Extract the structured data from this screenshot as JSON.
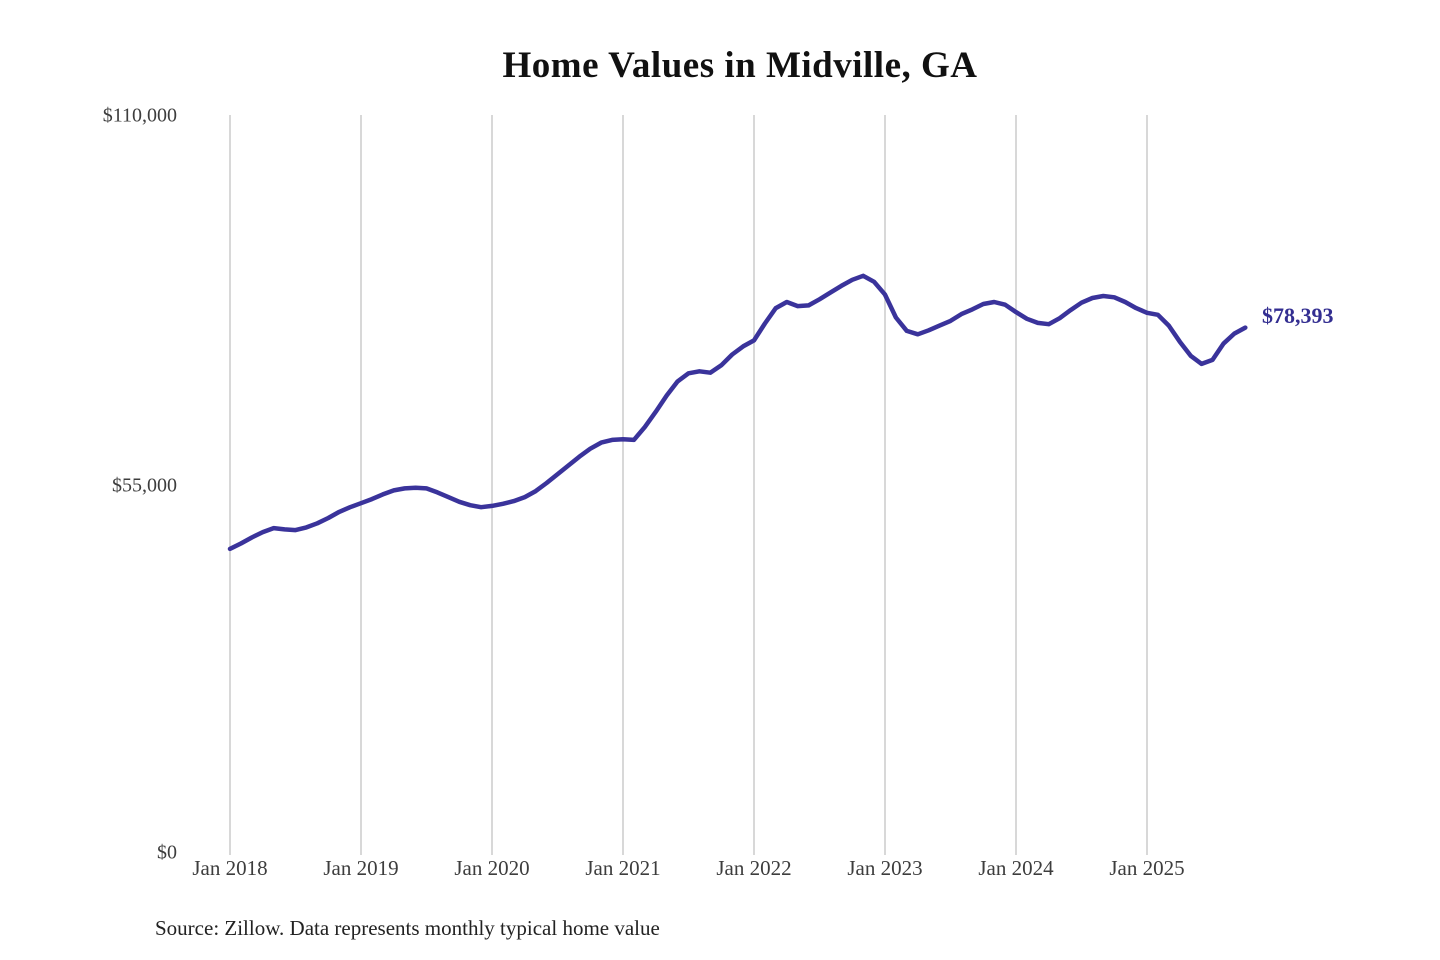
{
  "title": "Home Values in Midville, GA",
  "annotation": {
    "end_value_label": "$78,393"
  },
  "source_note": "Source: Zillow. Data represents monthly typical home value",
  "colors": {
    "line": "#3a339b",
    "gridline": "#cccccc",
    "title_text": "#111111",
    "axis_text": "#3d3d3d",
    "annotation_text": "#332e91",
    "background": "#ffffff"
  },
  "chart_data": {
    "type": "line",
    "title": "Home Values in Midville, GA",
    "x_unit": "month",
    "x_start_month": "2018-01",
    "x_end_month": "2025-10",
    "x_tick_labels": [
      "Jan 2018",
      "Jan 2019",
      "Jan 2020",
      "Jan 2021",
      "Jan 2022",
      "Jan 2023",
      "Jan 2024",
      "Jan 2025"
    ],
    "y_tick_labels": [
      "$110,000",
      "$55,000",
      "$0"
    ],
    "y_tick_values": [
      110000,
      55000,
      0
    ],
    "ylim": [
      0,
      110000
    ],
    "grid": "vertical-only",
    "legend": "none",
    "series": [
      {
        "name": "Typical home value (USD)",
        "values": [
          45500,
          46300,
          47200,
          48000,
          48600,
          48400,
          48300,
          48700,
          49300,
          50100,
          51000,
          51700,
          52300,
          52900,
          53600,
          54200,
          54500,
          54600,
          54500,
          53900,
          53200,
          52500,
          52000,
          51700,
          51900,
          52200,
          52600,
          53200,
          54100,
          55300,
          56600,
          57900,
          59200,
          60400,
          61300,
          61700,
          61800,
          61700,
          63600,
          65900,
          68300,
          70400,
          71600,
          71900,
          71700,
          72800,
          74400,
          75600,
          76500,
          79000,
          81300,
          82200,
          81600,
          81700,
          82600,
          83600,
          84600,
          85500,
          86100,
          85200,
          83300,
          79900,
          77900,
          77400,
          78000,
          78700,
          79400,
          80400,
          81100,
          81900,
          82200,
          81800,
          80700,
          79700,
          79100,
          78900,
          79800,
          81000,
          82100,
          82800,
          83100,
          82900,
          82200,
          81300,
          80600,
          80300,
          78700,
          76300,
          74200,
          73000,
          73600,
          76000,
          77500,
          78393
        ]
      }
    ],
    "final_value": 78393
  }
}
